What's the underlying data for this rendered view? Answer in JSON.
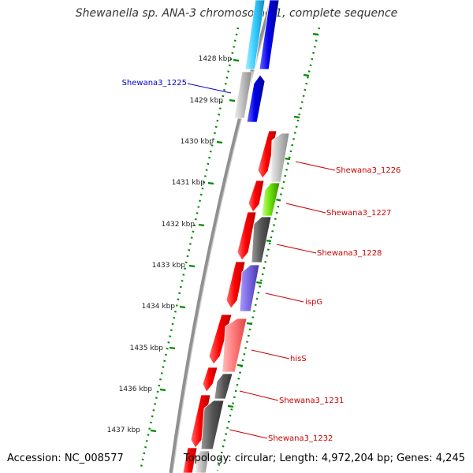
{
  "title": "Shewanella sp. ANA-3 chromosome 1, complete sequence",
  "accession": "Accession: NC_008577",
  "topology": "Topology: circular; Length: 4,972,204 bp; Genes: 4,245",
  "ruler": {
    "labels": [
      "1428 kbp",
      "1429 kbp",
      "1430 kbp",
      "1431 kbp",
      "1432 kbp",
      "1433 kbp",
      "1434 kbp",
      "1435 kbp",
      "1436 kbp",
      "1437 kbp"
    ]
  },
  "genes": [
    {
      "label": "Shewana3_1225",
      "color": "#0000cc"
    },
    {
      "label": "Shewana3_1226",
      "color": "#cc0000"
    },
    {
      "label": "Shewana3_1227",
      "color": "#cc0000"
    },
    {
      "label": "Shewana3_1228",
      "color": "#cc0000"
    },
    {
      "label": "ispG",
      "color": "#cc0000"
    },
    {
      "label": "hisS",
      "color": "#cc0000"
    },
    {
      "label": "Shewana3_1231",
      "color": "#cc0000"
    },
    {
      "label": "Shewana3_1232",
      "color": "#cc0000"
    }
  ],
  "colors": {
    "backbone": "#888888",
    "ruler_ticks": "#008800",
    "forward_genes": "#ff0000",
    "top_forward_genes": "#0000ee",
    "top_reverse_gene": "#33ccff",
    "reverse_gray": "#bbbbbb",
    "reverse_dark": "#555555",
    "reverse_green": "#66dd00",
    "reverse_purple": "#7766dd",
    "reverse_pink": "#ff7777"
  }
}
